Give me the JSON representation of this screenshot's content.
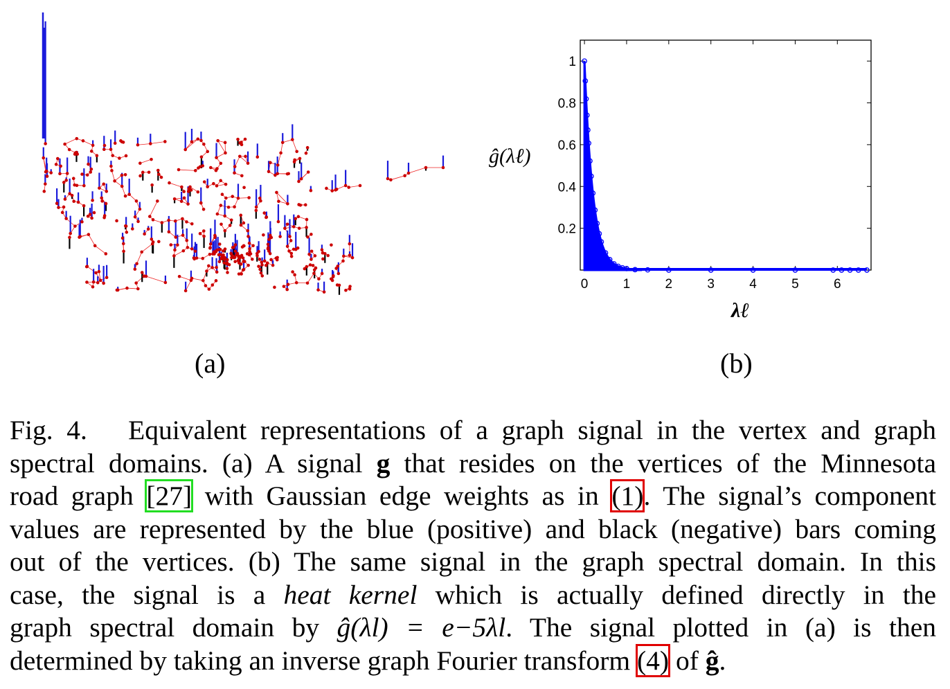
{
  "figure": {
    "panel_a": {
      "label": "(a)",
      "colors": {
        "edge": "#ee2222",
        "vertex": "#cc0000",
        "positive_bar": "#1a1adb",
        "negative_bar": "#000000"
      }
    },
    "panel_b": {
      "label": "(b)",
      "ylabel": "ĝ(λℓ)",
      "xlabel": "λℓ",
      "marker_color": "#0000ff"
    }
  },
  "chart_data": {
    "type": "scatter",
    "title": "",
    "xlabel": "λℓ",
    "ylabel": "ĝ(λℓ)",
    "xlim": [
      -0.1,
      6.8
    ],
    "ylim": [
      0,
      1.1
    ],
    "xticks": [
      "0",
      "1",
      "2",
      "3",
      "4",
      "5",
      "6"
    ],
    "yticks": [
      "0.2",
      "0.4",
      "0.6",
      "0.8",
      "1"
    ],
    "function": "exp(-5x)",
    "x": [
      0,
      0.02,
      0.04,
      0.06,
      0.08,
      0.1,
      0.13,
      0.16,
      0.2,
      0.25,
      0.3,
      0.35,
      0.4,
      0.5,
      0.6,
      0.7,
      0.8,
      0.9,
      1.0,
      1.2,
      1.5,
      2.0,
      3.0,
      4.0,
      5.0,
      5.9,
      6.1,
      6.3,
      6.5,
      6.7
    ],
    "y": [
      1.0,
      0.905,
      0.819,
      0.741,
      0.67,
      0.607,
      0.522,
      0.449,
      0.368,
      0.287,
      0.223,
      0.174,
      0.135,
      0.082,
      0.05,
      0.03,
      0.018,
      0.011,
      0.007,
      0.002,
      0.001,
      0.0,
      0.0,
      0.0,
      0.0,
      0.0,
      0.0,
      0.0,
      0.0,
      0.0
    ],
    "grid": false,
    "marker": "circle"
  },
  "caption": {
    "fig_label": "Fig. 4.",
    "l1": "Equivalent representations of a graph signal in the vertex and graph",
    "l2a": "spectral domains. (a) A signal ",
    "l2b": "g",
    "l2c": " that resides on the vertices of the Minnesota",
    "l3a": "road graph ",
    "ref27": "[27]",
    "l3b": " with Gaussian edge weights as in ",
    "ref1": "(1)",
    "l3c": ". The signal’s component",
    "l4": "values are represented by the blue (positive) and black (negative) bars coming",
    "l5": "out of the vertices. (b) The same signal in the graph spectral domain. In this",
    "l6a": "case, the signal is a ",
    "l6b": "heat kernel",
    "l6c": " which is actually defined directly in the",
    "l7a": "graph spectral domain by ",
    "l7math": "ĝ(λl) = e−5λl",
    "l7b": ". The signal plotted in (a) is then",
    "l8a": "determined by taking an inverse graph Fourier transform ",
    "ref4": "(4)",
    "l8b": " of ",
    "l8c": "ĝ",
    "l8d": "."
  }
}
